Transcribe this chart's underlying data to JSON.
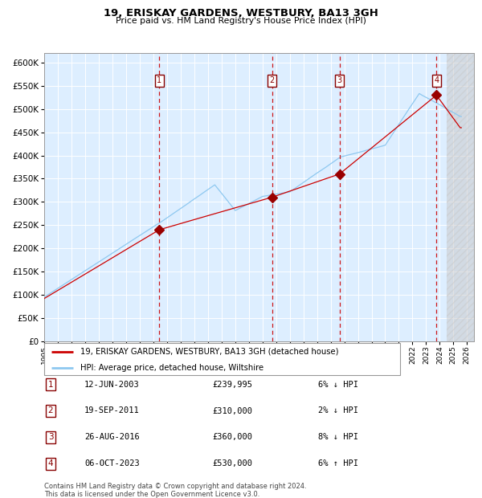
{
  "title": "19, ERISKAY GARDENS, WESTBURY, BA13 3GH",
  "subtitle": "Price paid vs. HM Land Registry's House Price Index (HPI)",
  "legend_line1": "19, ERISKAY GARDENS, WESTBURY, BA13 3GH (detached house)",
  "legend_line2": "HPI: Average price, detached house, Wiltshire",
  "footer1": "Contains HM Land Registry data © Crown copyright and database right 2024.",
  "footer2": "This data is licensed under the Open Government Licence v3.0.",
  "sale_markers": [
    {
      "num": 1,
      "date": "12-JUN-2003",
      "price": 239995,
      "pct": "6%",
      "dir": "↓",
      "x_year": 2003.44
    },
    {
      "num": 2,
      "date": "19-SEP-2011",
      "price": 310000,
      "pct": "2%",
      "dir": "↓",
      "x_year": 2011.71
    },
    {
      "num": 3,
      "date": "26-AUG-2016",
      "price": 360000,
      "pct": "8%",
      "dir": "↓",
      "x_year": 2016.65
    },
    {
      "num": 4,
      "date": "06-OCT-2023",
      "price": 530000,
      "pct": "6%",
      "dir": "↑",
      "x_year": 2023.76
    }
  ],
  "hpi_color": "#8ec8f0",
  "price_color": "#cc0000",
  "bg_color": "#ddeeff",
  "grid_color": "#ffffff",
  "vline_color": "#cc0000",
  "ylim": [
    0,
    620000
  ],
  "xlim": [
    1995.0,
    2026.5
  ],
  "yticks": [
    0,
    50000,
    100000,
    150000,
    200000,
    250000,
    300000,
    350000,
    400000,
    450000,
    500000,
    550000,
    600000
  ]
}
